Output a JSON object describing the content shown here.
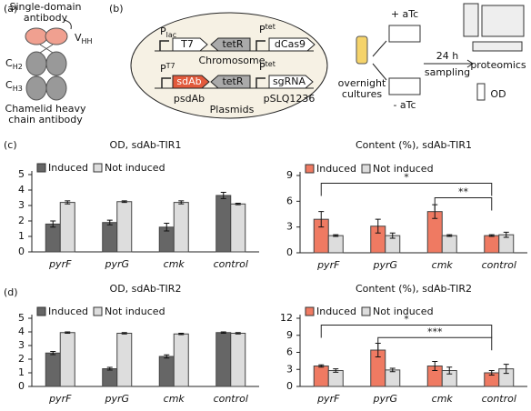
{
  "panel_labels": [
    "(a)",
    "(b)",
    "(c)",
    "(d)"
  ],
  "antibody": {
    "title": [
      "Single-domain",
      "antibody"
    ],
    "vhh": {
      "main": "V",
      "sub": "HH"
    },
    "ch2": {
      "main": "C",
      "sub": "H2"
    },
    "ch3": {
      "main": "C",
      "sub": "H3"
    },
    "caption": [
      "Chamelid heavy",
      "chain antibody"
    ]
  },
  "workflow": {
    "plac": {
      "main": "P",
      "sub": "lac"
    },
    "t7": "T7",
    "tetr1": "tetR",
    "ptet1": {
      "main": "P",
      "sub": "tet"
    },
    "dcas9": "dCas9",
    "chromosome": "Chromosome",
    "pt7": {
      "main": "P",
      "sub": "T7"
    },
    "sdab": "sdAb",
    "tetr2": "tetR",
    "ptet2": {
      "main": "P",
      "sub": "tet"
    },
    "sgrna": "sgRNA",
    "psdab": "psdAb",
    "pslq": "pSLQ1236",
    "plasmids": "Plasmids",
    "cultures": [
      "overnight",
      "cultures"
    ],
    "plus": "+ aTc",
    "minus": "- aTc",
    "time": "24 h",
    "sampling": "sampling",
    "proteomics": "proteomics",
    "od": "OD"
  },
  "chart_data": [
    {
      "type": "bar",
      "title": "OD, sdAb-TIR1",
      "categories": [
        "pyrF",
        "pyrG",
        "cmk",
        "control"
      ],
      "ylim": [
        0,
        5
      ],
      "yticks": [
        0,
        1,
        2,
        3,
        4,
        5
      ],
      "series": [
        {
          "name": "Induced",
          "color": "#666666",
          "values": [
            1.8,
            1.9,
            1.6,
            3.65
          ],
          "errors": [
            0.2,
            0.15,
            0.25,
            0.2
          ]
        },
        {
          "name": "Not induced",
          "color": "#dddddd",
          "values": [
            3.2,
            3.25,
            3.2,
            3.1
          ],
          "errors": [
            0.1,
            0.05,
            0.1,
            0.05
          ]
        }
      ]
    },
    {
      "type": "bar",
      "title": "Content (%), sdAb-TIR1",
      "categories": [
        "pyrF",
        "pyrG",
        "cmk",
        "control"
      ],
      "ylim": [
        0,
        9
      ],
      "yticks": [
        0,
        3,
        6,
        9
      ],
      "series": [
        {
          "name": "Induced",
          "color": "#ef7a62",
          "values": [
            3.9,
            3.1,
            4.8,
            2.0
          ],
          "errors": [
            0.9,
            0.8,
            0.8,
            0.1
          ]
        },
        {
          "name": "Not induced",
          "color": "#dddddd",
          "values": [
            2.0,
            2.0,
            2.0,
            2.1
          ],
          "errors": [
            0.1,
            0.3,
            0.1,
            0.3
          ]
        }
      ],
      "annotations": [
        "*",
        "**"
      ]
    },
    {
      "type": "bar",
      "title": "OD, sdAb-TIR2",
      "categories": [
        "pyrF",
        "pyrG",
        "cmk",
        "control"
      ],
      "ylim": [
        0,
        5
      ],
      "yticks": [
        0,
        1,
        2,
        3,
        4,
        5
      ],
      "series": [
        {
          "name": "Induced",
          "color": "#666666",
          "values": [
            2.45,
            1.3,
            2.2,
            3.95
          ],
          "errors": [
            0.12,
            0.1,
            0.12,
            0.05
          ]
        },
        {
          "name": "Not induced",
          "color": "#dddddd",
          "values": [
            3.95,
            3.9,
            3.85,
            3.9
          ],
          "errors": [
            0.05,
            0.05,
            0.05,
            0.05
          ]
        }
      ]
    },
    {
      "type": "bar",
      "title": "Content (%), sdAb-TIR2",
      "categories": [
        "pyrF",
        "pyrG",
        "cmk",
        "control"
      ],
      "ylim": [
        0,
        12
      ],
      "yticks": [
        0,
        3,
        6,
        9,
        12
      ],
      "series": [
        {
          "name": "Induced",
          "color": "#ef7a62",
          "values": [
            3.6,
            6.4,
            3.6,
            2.4
          ],
          "errors": [
            0.2,
            1.2,
            0.8,
            0.4
          ]
        },
        {
          "name": "Not induced",
          "color": "#dddddd",
          "values": [
            2.8,
            2.9,
            2.8,
            3.1
          ],
          "errors": [
            0.3,
            0.3,
            0.6,
            0.8
          ]
        }
      ],
      "annotations": [
        "*",
        "***"
      ]
    }
  ]
}
